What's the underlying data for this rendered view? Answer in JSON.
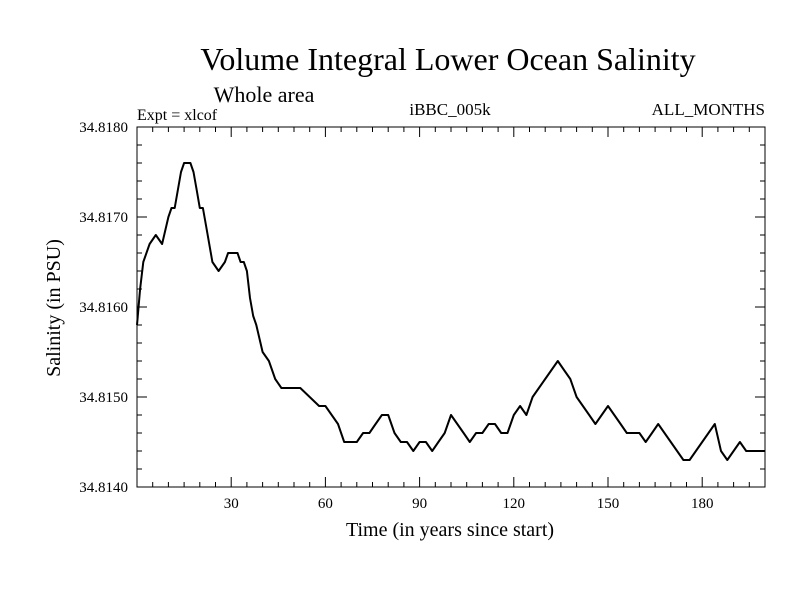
{
  "chart_data": {
    "type": "line",
    "title": "Volume Integral Lower Ocean Salinity",
    "subtitle": "Whole area",
    "annotations": {
      "left": "Expt = xlcof",
      "center": "iBBC_005k",
      "right": "ALL_MONTHS"
    },
    "xlabel": "Time (in years since start)",
    "ylabel": "Salinity (in PSU)",
    "xlim": [
      0,
      200
    ],
    "ylim": [
      34.814,
      34.818
    ],
    "x_ticks": [
      30,
      60,
      90,
      120,
      150,
      180
    ],
    "x_tick_labels": [
      "30",
      "60",
      "90",
      "120",
      "150",
      "180"
    ],
    "y_ticks": [
      34.814,
      34.815,
      34.816,
      34.817,
      34.818
    ],
    "y_tick_labels": [
      "34.8140",
      "34.8150",
      "34.8160",
      "34.8170",
      "34.8180"
    ],
    "grid": false,
    "series": [
      {
        "name": "Salinity",
        "x": [
          0,
          1,
          2,
          4,
          6,
          8,
          10,
          11,
          12,
          14,
          15,
          16,
          17,
          18,
          19,
          20,
          21,
          22,
          24,
          26,
          28,
          29,
          30,
          31,
          32,
          33,
          34,
          35,
          36,
          37,
          38,
          40,
          42,
          44,
          46,
          48,
          50,
          52,
          55,
          58,
          60,
          62,
          64,
          66,
          68,
          70,
          72,
          74,
          76,
          78,
          80,
          82,
          84,
          86,
          88,
          90,
          92,
          94,
          96,
          98,
          100,
          102,
          104,
          106,
          108,
          110,
          112,
          114,
          116,
          118,
          120,
          122,
          124,
          126,
          128,
          130,
          132,
          134,
          136,
          138,
          140,
          142,
          144,
          146,
          148,
          150,
          152,
          154,
          156,
          158,
          160,
          162,
          164,
          166,
          168,
          170,
          172,
          174,
          176,
          178,
          180,
          182,
          184,
          186,
          188,
          190,
          192,
          194,
          196,
          198,
          200
        ],
        "values": [
          34.8158,
          34.8162,
          34.8165,
          34.8167,
          34.8168,
          34.8167,
          34.817,
          34.8171,
          34.8171,
          34.8175,
          34.8176,
          34.8176,
          34.8176,
          34.8175,
          34.8173,
          34.8171,
          34.8171,
          34.8169,
          34.8165,
          34.8164,
          34.8165,
          34.8166,
          34.8166,
          34.8166,
          34.8166,
          34.8165,
          34.8165,
          34.8164,
          34.8161,
          34.8159,
          34.8158,
          34.8155,
          34.8154,
          34.8152,
          34.8151,
          34.8151,
          34.8151,
          34.8151,
          34.815,
          34.8149,
          34.8149,
          34.8148,
          34.8147,
          34.8145,
          34.8145,
          34.8145,
          34.8146,
          34.8146,
          34.8147,
          34.8148,
          34.8148,
          34.8146,
          34.8145,
          34.8145,
          34.8144,
          34.8145,
          34.8145,
          34.8144,
          34.8145,
          34.8146,
          34.8148,
          34.8147,
          34.8146,
          34.8145,
          34.8146,
          34.8146,
          34.8147,
          34.8147,
          34.8146,
          34.8146,
          34.8148,
          34.8149,
          34.8148,
          34.815,
          34.8151,
          34.8152,
          34.8153,
          34.8154,
          34.8153,
          34.8152,
          34.815,
          34.8149,
          34.8148,
          34.8147,
          34.8148,
          34.8149,
          34.8148,
          34.8147,
          34.8146,
          34.8146,
          34.8146,
          34.8145,
          34.8146,
          34.8147,
          34.8146,
          34.8145,
          34.8144,
          34.8143,
          34.8143,
          34.8144,
          34.8145,
          34.8146,
          34.8147,
          34.8144,
          34.8143,
          34.8144,
          34.8145,
          34.8144,
          34.8144,
          34.8144,
          34.8144
        ]
      }
    ]
  }
}
